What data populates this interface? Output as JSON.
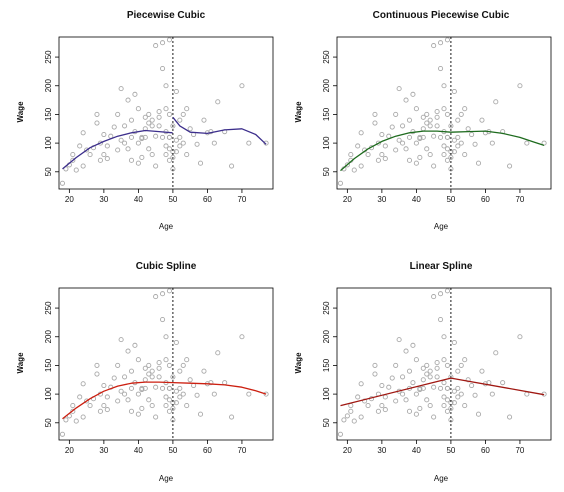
{
  "figure": {
    "panels": [
      {
        "title": "Piecewise Cubic",
        "xlabel": "Age",
        "ylabel": "Wage"
      },
      {
        "title": "Continuous Piecewise Cubic",
        "xlabel": "Age",
        "ylabel": "Wage"
      },
      {
        "title": "Cubic Spline",
        "xlabel": "Age",
        "ylabel": "Wage"
      },
      {
        "title": "Linear Spline",
        "xlabel": "Age",
        "ylabel": "Wage"
      }
    ]
  },
  "chart_data": [
    {
      "type": "scatter",
      "title": "Piecewise Cubic",
      "xlabel": "Age",
      "ylabel": "Wage",
      "xlim": [
        17,
        79
      ],
      "ylim": [
        20,
        285
      ],
      "xticks": [
        20,
        30,
        40,
        50,
        60,
        70
      ],
      "yticks": [
        50,
        100,
        150,
        200,
        250
      ],
      "knot": 50,
      "curve_color": "#3c2e8c",
      "curve_segments": [
        {
          "x": [
            18,
            22,
            26,
            30,
            34,
            38,
            42,
            46,
            49.9
          ],
          "y": [
            55,
            75,
            92,
            103,
            112,
            118,
            122,
            120,
            118
          ]
        },
        {
          "x": [
            50,
            52,
            55,
            60,
            65,
            70,
            74,
            77
          ],
          "y": [
            145,
            130,
            119,
            117,
            123,
            125,
            115,
            98
          ]
        }
      ],
      "points_ref": "shared"
    },
    {
      "type": "scatter",
      "title": "Continuous Piecewise Cubic",
      "xlabel": "Age",
      "ylabel": "Wage",
      "xlim": [
        17,
        79
      ],
      "ylim": [
        20,
        285
      ],
      "xticks": [
        20,
        30,
        40,
        50,
        60,
        70
      ],
      "yticks": [
        50,
        100,
        150,
        200,
        250
      ],
      "knot": 50,
      "curve_color": "#1e6b1e",
      "curve_segments": [
        {
          "x": [
            18,
            22,
            26,
            30,
            34,
            38,
            42,
            46,
            50,
            55,
            60,
            65,
            70,
            74,
            77
          ],
          "y": [
            52,
            73,
            90,
            103,
            112,
            118,
            121,
            121,
            119,
            120,
            121,
            117,
            110,
            102,
            96
          ]
        }
      ],
      "points_ref": "shared"
    },
    {
      "type": "scatter",
      "title": "Cubic Spline",
      "xlabel": "Age",
      "ylabel": "Wage",
      "xlim": [
        17,
        79
      ],
      "ylim": [
        20,
        285
      ],
      "xticks": [
        20,
        30,
        40,
        50,
        60,
        70
      ],
      "yticks": [
        50,
        100,
        150,
        200,
        250
      ],
      "knot": 50,
      "curve_color": "#cc1f10",
      "curve_segments": [
        {
          "x": [
            18,
            22,
            26,
            30,
            34,
            38,
            42,
            46,
            50,
            55,
            60,
            65,
            70,
            74,
            77
          ],
          "y": [
            57,
            76,
            92,
            105,
            114,
            119,
            121,
            121,
            120,
            119,
            118,
            116,
            112,
            106,
            100
          ]
        }
      ],
      "points_ref": "shared"
    },
    {
      "type": "scatter",
      "title": "Linear Spline",
      "xlabel": "Age",
      "ylabel": "Wage",
      "xlim": [
        17,
        79
      ],
      "ylim": [
        20,
        285
      ],
      "xticks": [
        20,
        30,
        40,
        50,
        60,
        70
      ],
      "yticks": [
        50,
        100,
        150,
        200,
        250
      ],
      "knot": 50,
      "curve_color": "#a01812",
      "curve_segments": [
        {
          "x": [
            18,
            50,
            77
          ],
          "y": [
            80,
            128,
            99
          ]
        }
      ],
      "points_ref": "shared"
    }
  ],
  "shared_points": {
    "x": [
      18,
      19,
      20,
      21,
      21,
      22,
      23,
      24,
      24,
      25,
      26,
      27,
      28,
      28,
      29,
      29,
      30,
      30,
      31,
      31,
      32,
      33,
      34,
      34,
      35,
      35,
      36,
      36,
      37,
      37,
      38,
      38,
      38,
      39,
      39,
      40,
      40,
      40,
      41,
      41,
      41,
      42,
      42,
      42,
      43,
      43,
      43,
      44,
      44,
      44,
      45,
      45,
      45,
      46,
      46,
      46,
      47,
      47,
      47,
      48,
      48,
      48,
      48,
      48,
      49,
      49,
      49,
      49,
      49,
      49,
      50,
      50,
      50,
      50,
      51,
      51,
      51,
      52,
      52,
      52,
      53,
      53,
      54,
      54,
      55,
      56,
      57,
      58,
      59,
      60,
      61,
      62,
      63,
      65,
      67,
      70,
      72,
      77
    ],
    "y": [
      30,
      55,
      62,
      70,
      80,
      53,
      95,
      118,
      60,
      88,
      80,
      92,
      135,
      150,
      100,
      70,
      115,
      80,
      73,
      95,
      112,
      128,
      150,
      88,
      195,
      105,
      130,
      100,
      175,
      90,
      140,
      110,
      70,
      185,
      120,
      160,
      100,
      65,
      108,
      110,
      75,
      145,
      125,
      110,
      150,
      90,
      135,
      130,
      140,
      80,
      270,
      112,
      60,
      130,
      145,
      155,
      275,
      110,
      230,
      200,
      160,
      80,
      95,
      120,
      280,
      110,
      90,
      150,
      110,
      70,
      130,
      75,
      55,
      85,
      105,
      85,
      190,
      110,
      95,
      140,
      150,
      100,
      80,
      160,
      125,
      115,
      98,
      65,
      140,
      118,
      120,
      100,
      172,
      120,
      60,
      200,
      100,
      100
    ]
  }
}
